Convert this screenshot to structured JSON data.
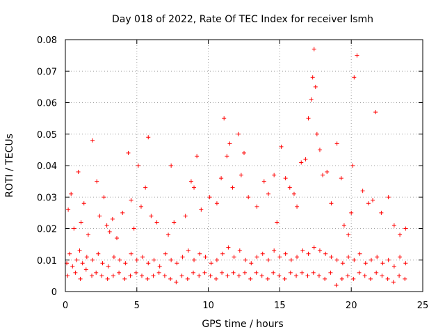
{
  "chart_data": {
    "type": "scatter",
    "title": "Day 018 of 2022, Rate Of TEC Index for receiver lsmh",
    "xlabel": "GPS time / hours",
    "ylabel": "ROTI / TECUs",
    "xlim": [
      0,
      25
    ],
    "ylim": [
      0,
      0.08
    ],
    "xticks": [
      "0",
      "5",
      "10",
      "15",
      "20",
      "25"
    ],
    "yticks": [
      "0",
      "0.01",
      "0.02",
      "0.03",
      "0.04",
      "0.05",
      "0.06",
      "0.07",
      "0.08"
    ],
    "grid": true,
    "marker": "plus",
    "color": "#ff0000",
    "series": [
      {
        "x": [
          0.1,
          0.3,
          0.5,
          0.8,
          1.0,
          1.2,
          1.5,
          1.9,
          2.3,
          2.6,
          3.0,
          3.4,
          3.8,
          4.2,
          4.6,
          5.0,
          5.4,
          5.8,
          6.2,
          6.6,
          7.0,
          7.4,
          7.8,
          8.2,
          8.6,
          9.0,
          9.4,
          9.8,
          10.2,
          10.6,
          11.0,
          11.4,
          11.8,
          12.2,
          12.6,
          13.0,
          13.4,
          13.8,
          14.2,
          14.6,
          15.0,
          15.4,
          15.8,
          16.2,
          16.6,
          17.0,
          17.4,
          17.8,
          18.2,
          18.6,
          19.0,
          19.4,
          19.8,
          20.2,
          20.6,
          21.0,
          21.4,
          21.8,
          22.2,
          22.6,
          23.0,
          23.4,
          23.8,
          0.2,
          0.4,
          0.6,
          0.9,
          1.1,
          1.3,
          1.6,
          1.9,
          2.2,
          2.4,
          2.7,
          2.9,
          3.1,
          3.3,
          3.6,
          4.0,
          4.4,
          4.6,
          4.8,
          5.1,
          5.3,
          5.6,
          5.8,
          6.0,
          6.4,
          7.2,
          7.4,
          7.6,
          8.4,
          8.8,
          9.0,
          9.2,
          9.5,
          10.1,
          10.6,
          10.9,
          11.1,
          11.3,
          11.5,
          11.7,
          12.1,
          12.3,
          12.5,
          12.8,
          13.4,
          13.9,
          14.2,
          14.6,
          14.8,
          15.1,
          15.4,
          15.7,
          16.0,
          16.2,
          16.5,
          16.8,
          17.0,
          17.2,
          17.3,
          17.4,
          17.5,
          17.6,
          17.8,
          18.0,
          18.3,
          18.6,
          19.0,
          19.3,
          19.5,
          19.8,
          20.0,
          20.1,
          20.2,
          20.4,
          20.8,
          21.2,
          21.5,
          21.7,
          22.1,
          22.6,
          23.0,
          23.4,
          23.8,
          0.15,
          0.7,
          1.05,
          1.45,
          1.85,
          2.15,
          2.55,
          2.95,
          3.35,
          3.75,
          4.15,
          4.55,
          4.95,
          5.35,
          5.75,
          6.15,
          6.55,
          6.95,
          7.35,
          7.75,
          8.15,
          8.55,
          8.95,
          9.35,
          9.75,
          10.15,
          10.55,
          10.95,
          11.35,
          11.75,
          12.15,
          12.55,
          12.95,
          13.35,
          13.75,
          14.15,
          14.55,
          14.95,
          15.35,
          15.75,
          16.15,
          16.55,
          16.95,
          17.35,
          17.75,
          18.15,
          18.55,
          18.95,
          19.35,
          19.75,
          20.15,
          20.55,
          20.95,
          21.35,
          21.75,
          22.15,
          22.55,
          22.95,
          23.35,
          23.75
        ],
        "y": [
          0.009,
          0.012,
          0.008,
          0.01,
          0.013,
          0.009,
          0.011,
          0.01,
          0.012,
          0.009,
          0.008,
          0.011,
          0.01,
          0.009,
          0.012,
          0.01,
          0.011,
          0.009,
          0.01,
          0.008,
          0.012,
          0.01,
          0.009,
          0.011,
          0.013,
          0.01,
          0.012,
          0.011,
          0.009,
          0.01,
          0.012,
          0.014,
          0.011,
          0.013,
          0.01,
          0.009,
          0.011,
          0.012,
          0.01,
          0.013,
          0.011,
          0.012,
          0.01,
          0.011,
          0.013,
          0.012,
          0.014,
          0.013,
          0.012,
          0.011,
          0.01,
          0.009,
          0.011,
          0.01,
          0.012,
          0.009,
          0.01,
          0.011,
          0.009,
          0.01,
          0.008,
          0.011,
          0.009,
          0.026,
          0.031,
          0.02,
          0.038,
          0.022,
          0.028,
          0.018,
          0.048,
          0.035,
          0.024,
          0.03,
          0.021,
          0.019,
          0.023,
          0.017,
          0.025,
          0.044,
          0.029,
          0.02,
          0.04,
          0.027,
          0.033,
          0.049,
          0.024,
          0.022,
          0.018,
          0.04,
          0.022,
          0.024,
          0.035,
          0.033,
          0.043,
          0.026,
          0.03,
          0.028,
          0.036,
          0.055,
          0.043,
          0.047,
          0.033,
          0.05,
          0.037,
          0.044,
          0.03,
          0.027,
          0.035,
          0.031,
          0.037,
          0.022,
          0.046,
          0.036,
          0.033,
          0.031,
          0.027,
          0.041,
          0.042,
          0.055,
          0.061,
          0.068,
          0.077,
          0.065,
          0.05,
          0.045,
          0.037,
          0.038,
          0.028,
          0.047,
          0.036,
          0.021,
          0.018,
          0.025,
          0.04,
          0.068,
          0.075,
          0.032,
          0.028,
          0.029,
          0.057,
          0.025,
          0.03,
          0.021,
          0.018,
          0.02,
          0.005,
          0.006,
          0.004,
          0.007,
          0.005,
          0.006,
          0.005,
          0.004,
          0.005,
          0.006,
          0.004,
          0.005,
          0.006,
          0.005,
          0.004,
          0.005,
          0.006,
          0.005,
          0.004,
          0.003,
          0.005,
          0.004,
          0.006,
          0.005,
          0.006,
          0.005,
          0.004,
          0.006,
          0.005,
          0.006,
          0.005,
          0.006,
          0.004,
          0.006,
          0.005,
          0.004,
          0.006,
          0.005,
          0.004,
          0.006,
          0.005,
          0.006,
          0.005,
          0.006,
          0.005,
          0.004,
          0.006,
          0.002,
          0.004,
          0.005,
          0.004,
          0.006,
          0.005,
          0.004,
          0.006,
          0.005,
          0.004,
          0.003,
          0.005,
          0.004
        ]
      }
    ]
  }
}
